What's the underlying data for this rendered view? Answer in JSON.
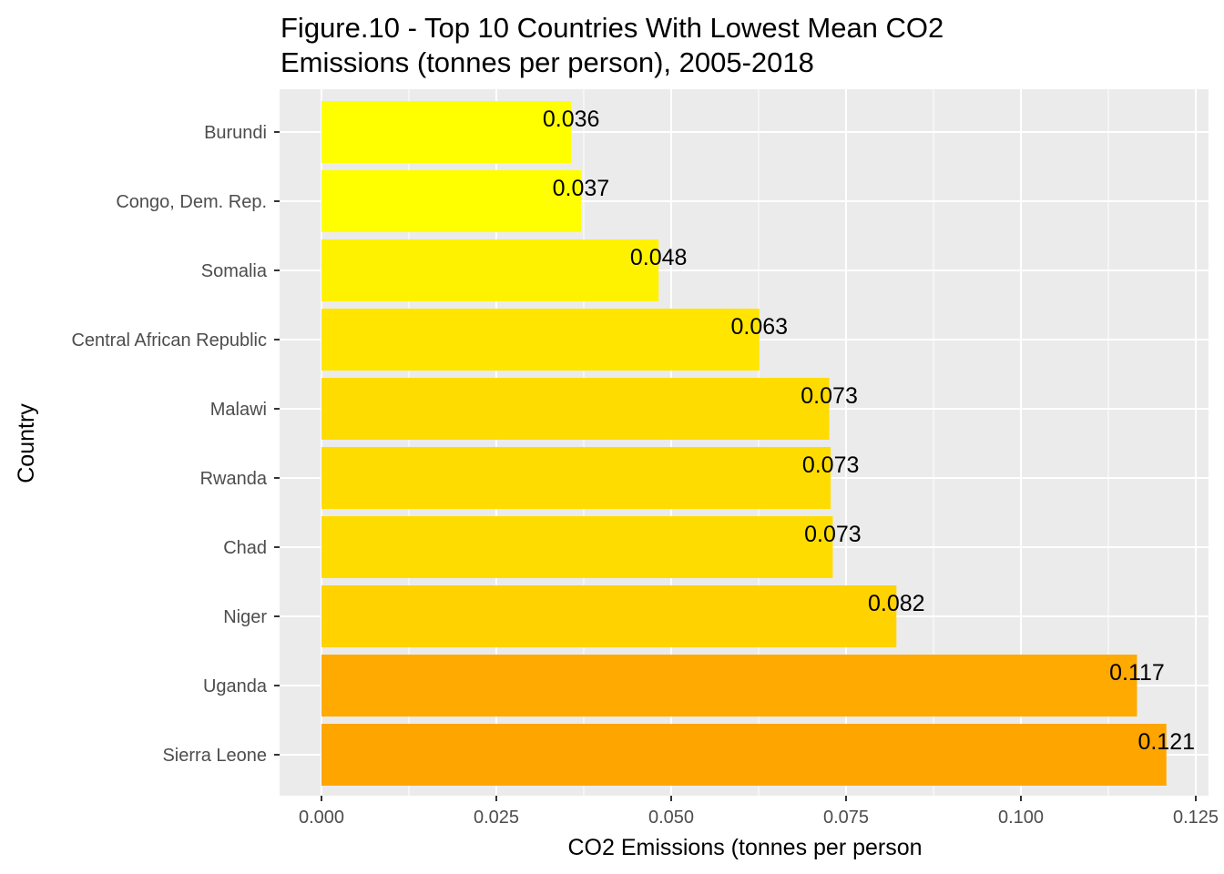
{
  "chart_data": {
    "type": "bar",
    "orientation": "horizontal",
    "title": "Figure.10 - Top 10 Countries With Lowest Mean CO2 Emissions (tonnes per person), 2005-2018",
    "title_lines": [
      "Figure.10 - Top 10 Countries With Lowest Mean CO2",
      "Emissions (tonnes per person), 2005-2018"
    ],
    "xlabel": "CO2 Emissions (tonnes per person",
    "ylabel": "Country",
    "categories": [
      "Burundi",
      "Congo, Dem. Rep.",
      "Somalia",
      "Central African Republic",
      "Malawi",
      "Rwanda",
      "Chad",
      "Niger",
      "Uganda",
      "Sierra Leone"
    ],
    "values": [
      0.0357,
      0.0371,
      0.0482,
      0.0626,
      0.0726,
      0.0728,
      0.0731,
      0.0822,
      0.1166,
      0.1208
    ],
    "data_labels": [
      "0.036",
      "0.037",
      "0.048",
      "0.063",
      "0.073",
      "0.073",
      "0.073",
      "0.082",
      "0.117",
      "0.121"
    ],
    "bar_colors": [
      "#FFFF00",
      "#FFFF00",
      "#FFF200",
      "#FFE500",
      "#FFDC00",
      "#FFDC00",
      "#FFDC00",
      "#FFD200",
      "#FFAA00",
      "#FFA500"
    ],
    "xlim": [
      0,
      0.125
    ],
    "xticks": [
      0,
      0.025,
      0.05,
      0.075,
      0.1,
      0.125
    ],
    "xtick_labels": [
      "0.000",
      "0.025",
      "0.050",
      "0.075",
      "0.100",
      "0.125"
    ],
    "grid": true,
    "legend": "none",
    "panel_background": "#EBEBEB",
    "grid_color": "#FFFFFF"
  }
}
